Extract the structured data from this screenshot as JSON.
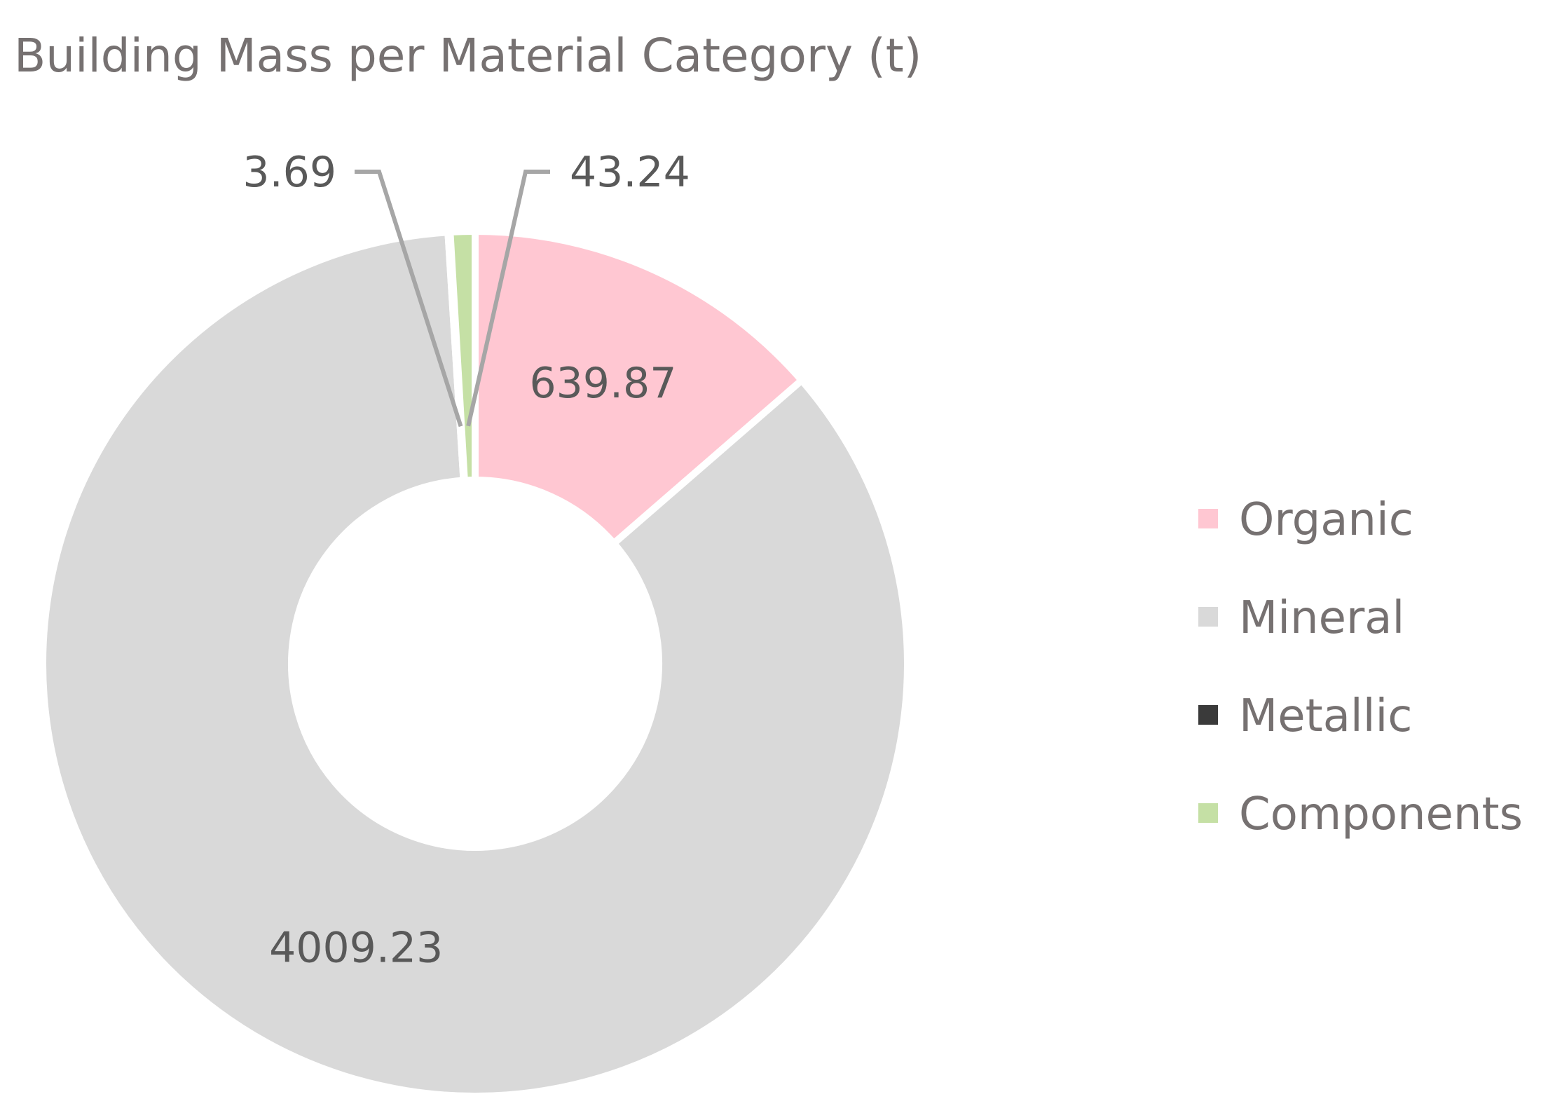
{
  "chart_data": {
    "type": "pie",
    "variant": "donut",
    "title": "Building Mass per Material Category (t)",
    "categories": [
      "Organic",
      "Mineral",
      "Metallic",
      "Components"
    ],
    "values": [
      639.87,
      4009.23,
      3.69,
      43.24
    ],
    "labels": [
      "639.87",
      "4009.23",
      "3.69",
      "43.24"
    ],
    "colors": [
      "#FFC7D2",
      "#D9D9D9",
      "#3A3A3A",
      "#C5E0A5"
    ],
    "legend_position": "right",
    "start_angle_deg": 0,
    "direction": "clockwise"
  }
}
